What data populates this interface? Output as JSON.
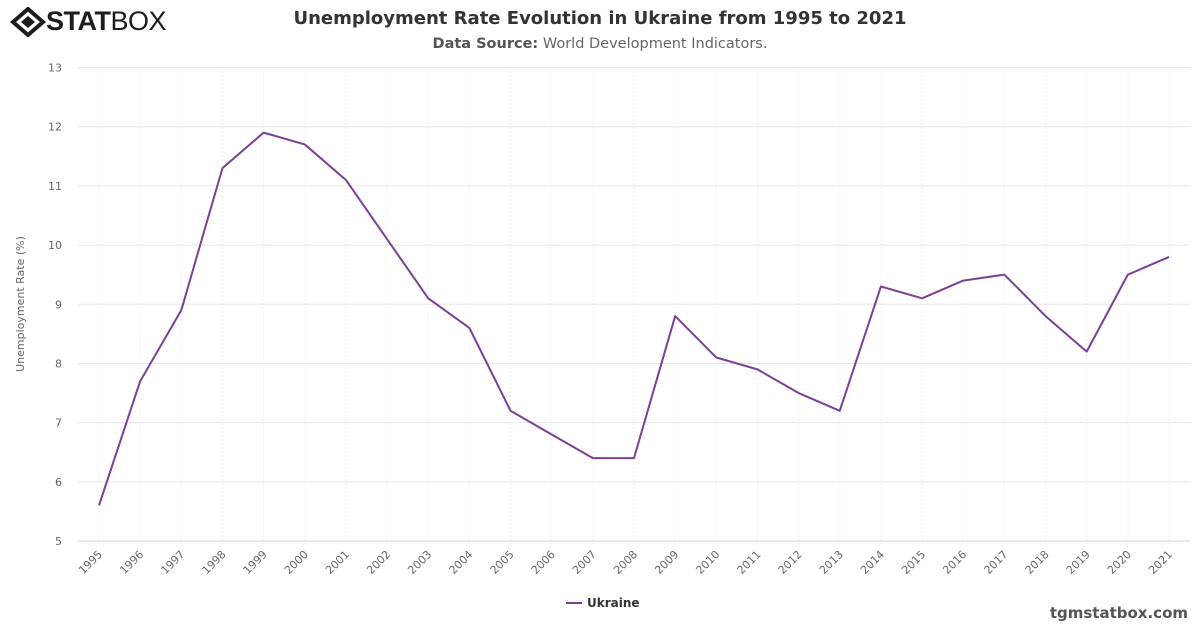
{
  "brand": {
    "logo_text_bold": "STAT",
    "logo_text_light": "BOX",
    "watermark": "tgmstatbox.com"
  },
  "header": {
    "title": "Unemployment Rate Evolution in Ukraine from 1995 to 2021",
    "source_label": "Data Source:",
    "source_value": "World Development Indicators."
  },
  "chart_data": {
    "type": "line",
    "title": "Unemployment Rate Evolution in Ukraine from 1995 to 2021",
    "xlabel": "",
    "ylabel": "Unemployment Rate (%)",
    "ylim": [
      5,
      13
    ],
    "yticks": [
      5,
      6,
      7,
      8,
      9,
      10,
      11,
      12,
      13
    ],
    "grid": true,
    "legend": "bottom-center",
    "categories": [
      "1995",
      "1996",
      "1997",
      "1998",
      "1999",
      "2000",
      "2001",
      "2002",
      "2003",
      "2004",
      "2005",
      "2006",
      "2007",
      "2008",
      "2009",
      "2010",
      "2011",
      "2012",
      "2013",
      "2014",
      "2015",
      "2016",
      "2017",
      "2018",
      "2019",
      "2020",
      "2021"
    ],
    "series": [
      {
        "name": "Ukraine",
        "color": "#7b3f96",
        "values": [
          5.6,
          7.7,
          8.9,
          11.3,
          11.9,
          11.7,
          11.1,
          10.1,
          9.1,
          8.6,
          7.2,
          6.8,
          6.4,
          6.4,
          8.8,
          8.1,
          7.9,
          7.5,
          7.2,
          9.3,
          9.1,
          9.4,
          9.5,
          8.8,
          8.2,
          9.5,
          9.8
        ]
      }
    ]
  }
}
